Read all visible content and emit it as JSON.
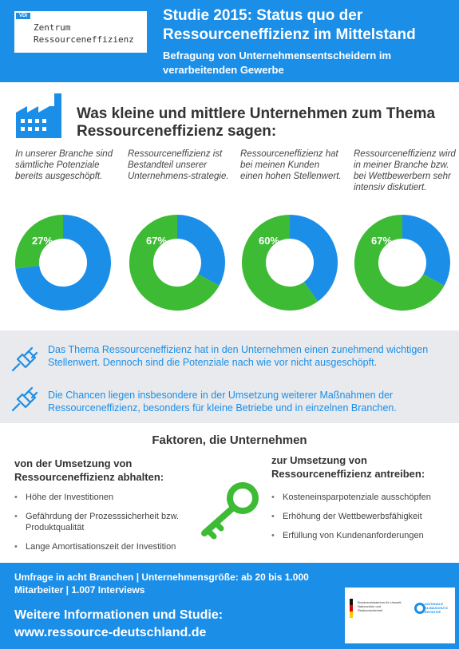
{
  "header": {
    "logo_badge": "VDI",
    "logo_line1": "Zentrum",
    "logo_line2": "Ressourceneffizienz",
    "title": "Studie 2015: Status quo der Ressourceneffizienz im Mittelstand",
    "subtitle": "Befragung von Unternehmensentscheidern im verarbeitenden Gewerbe"
  },
  "section1": {
    "heading": "Was kleine und mittlere Unternehmen zum Thema Ressourceneffizienz sagen:",
    "statements": [
      "In unserer Branche sind sämtliche Potenziale bereits ausgeschöpft.",
      "Ressourceneffizienz ist Bestandteil unserer Unternehmens-strategie.",
      "Ressourceneffizienz hat bei meinen Kunden einen hohen Stellenwert.",
      "Ressourceneffizienz wird in meiner Branche bzw. bei Wettbewerbern sehr intensiv diskutiert."
    ]
  },
  "chart_data": {
    "type": "pie",
    "charts": [
      {
        "value": 27,
        "label": "27%"
      },
      {
        "value": 67,
        "label": "67%"
      },
      {
        "value": 60,
        "label": "60%"
      },
      {
        "value": 67,
        "label": "67%"
      }
    ],
    "colors": {
      "agree": "#3dbb34",
      "rest": "#1b8ee8"
    }
  },
  "band": {
    "text1": "Das Thema Ressourceneffizienz hat in den Unternehmen einen zunehmend wichtigen Stellenwert. Dennoch sind die Potenziale nach wie vor nicht ausgeschöpft.",
    "text2": "Die Chancen liegen insbesondere in der Umsetzung weiterer Maßnahmen der Ressourceneffizienz, besonders für kleine Betriebe und in einzelnen Branchen."
  },
  "factors": {
    "title": "Faktoren, die Unternehmen",
    "left_heading": "von der Umsetzung von Ressourceneffizienz abhalten:",
    "left_items": [
      "Höhe der Investitionen",
      "Gefährdung der Prozesssicherheit bzw. Produktqualität",
      "Lange Amortisationszeit der Investition"
    ],
    "right_heading": "zur Umsetzung von Ressourceneffizienz antreiben:",
    "right_items": [
      "Kosteneinsparpotenziale ausschöpfen",
      "Erhöhung der Wettbewerbsfähigkeit",
      "Erfüllung von Kundenanforderungen"
    ]
  },
  "footer": {
    "survey": "Umfrage in acht Branchen | Unternehmensgröße: ab 20 bis 1.000 Mitarbeiter | 1.007 Interviews",
    "info": "Weitere Informationen und Studie:",
    "url": "www.ressource-deutschland.de",
    "ministry": "Bundesministerium für Umwelt, Naturschutz und Reaktorsicherheit",
    "initiative": "NATIONALE KLIMASCHUTZ INITIATIVE"
  },
  "colors": {
    "blue": "#1b8ee8",
    "green": "#3dbb34",
    "gray_band": "#e8eaed"
  }
}
